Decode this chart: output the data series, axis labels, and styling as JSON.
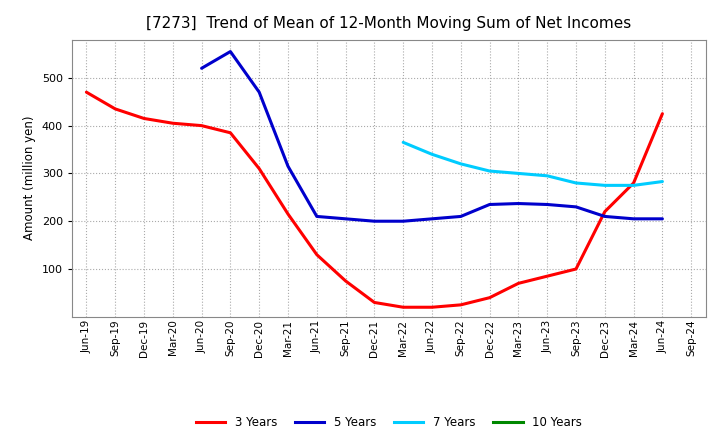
{
  "title": "[7273]  Trend of Mean of 12-Month Moving Sum of Net Incomes",
  "ylabel": "Amount (million yen)",
  "background_color": "#ffffff",
  "plot_bg_color": "#ffffff",
  "grid_color": "#aaaaaa",
  "ylim": [
    0,
    580
  ],
  "yticks": [
    100,
    200,
    300,
    400,
    500
  ],
  "x_labels": [
    "Jun-19",
    "Sep-19",
    "Dec-19",
    "Mar-20",
    "Jun-20",
    "Sep-20",
    "Dec-20",
    "Mar-21",
    "Jun-21",
    "Sep-21",
    "Dec-21",
    "Mar-22",
    "Jun-22",
    "Sep-22",
    "Dec-22",
    "Mar-23",
    "Jun-23",
    "Sep-23",
    "Dec-23",
    "Mar-24",
    "Jun-24",
    "Sep-24"
  ],
  "series": {
    "3_years": {
      "color": "#ff0000",
      "label": "3 Years",
      "data": [
        470,
        435,
        415,
        405,
        400,
        385,
        310,
        215,
        130,
        75,
        30,
        20,
        20,
        25,
        40,
        70,
        85,
        100,
        220,
        280,
        425,
        null
      ]
    },
    "5_years": {
      "color": "#0000cc",
      "label": "5 Years",
      "data": [
        null,
        null,
        null,
        null,
        520,
        555,
        470,
        315,
        210,
        205,
        200,
        200,
        205,
        210,
        235,
        237,
        235,
        230,
        210,
        205,
        205,
        null
      ]
    },
    "7_years": {
      "color": "#00ccff",
      "label": "7 Years",
      "data": [
        null,
        null,
        null,
        null,
        null,
        null,
        null,
        null,
        null,
        null,
        null,
        365,
        340,
        320,
        305,
        300,
        295,
        280,
        275,
        275,
        283,
        null
      ]
    },
    "10_years": {
      "color": "#008800",
      "label": "10 Years",
      "data": [
        null,
        null,
        null,
        null,
        null,
        null,
        null,
        null,
        null,
        null,
        null,
        null,
        null,
        null,
        null,
        null,
        null,
        null,
        null,
        null,
        null,
        null
      ]
    }
  },
  "title_fontsize": 11,
  "ylabel_fontsize": 8.5,
  "tick_labelsize": 8,
  "xtick_labelsize": 7.5,
  "linewidth": 2.2,
  "legend_fontsize": 8.5
}
